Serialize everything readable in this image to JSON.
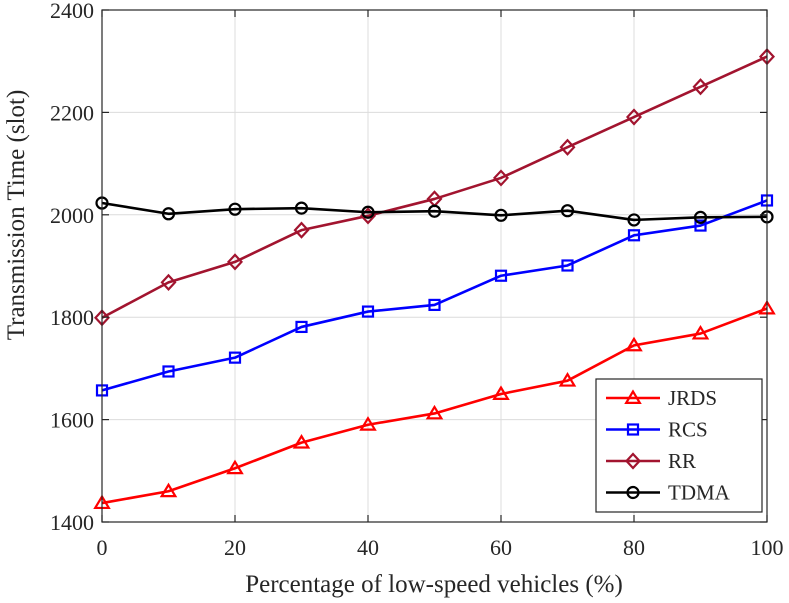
{
  "chart_data": {
    "type": "line",
    "xlabel": "Percentage of low-speed vehicles (%)",
    "ylabel": "Transmission Time (slot)",
    "x": [
      0,
      10,
      20,
      30,
      40,
      50,
      60,
      70,
      80,
      90,
      100
    ],
    "xlim": [
      0,
      100
    ],
    "ylim": [
      1400,
      2400
    ],
    "xticks": [
      0,
      20,
      40,
      60,
      80,
      100
    ],
    "yticks": [
      1400,
      1600,
      1800,
      2000,
      2200,
      2400
    ],
    "grid": true,
    "legend_position": "bottom-right",
    "series": [
      {
        "name": "JRDS",
        "color": "#ff0000",
        "marker": "triangle",
        "values": [
          1437,
          1460,
          1505,
          1555,
          1590,
          1612,
          1650,
          1676,
          1745,
          1768,
          1817
        ]
      },
      {
        "name": "RCS",
        "color": "#0000ff",
        "marker": "square",
        "values": [
          1657,
          1694,
          1721,
          1781,
          1811,
          1824,
          1881,
          1901,
          1960,
          1979,
          2028
        ]
      },
      {
        "name": "RR",
        "color": "#a2142f",
        "marker": "diamond",
        "values": [
          1799,
          1868,
          1908,
          1970,
          1998,
          2031,
          2072,
          2132,
          2191,
          2250,
          2309
        ]
      },
      {
        "name": "TDMA",
        "color": "#000000",
        "marker": "circle",
        "values": [
          2023,
          2002,
          2011,
          2013,
          2005,
          2007,
          1999,
          2008,
          1990,
          1995,
          1996
        ]
      }
    ]
  }
}
